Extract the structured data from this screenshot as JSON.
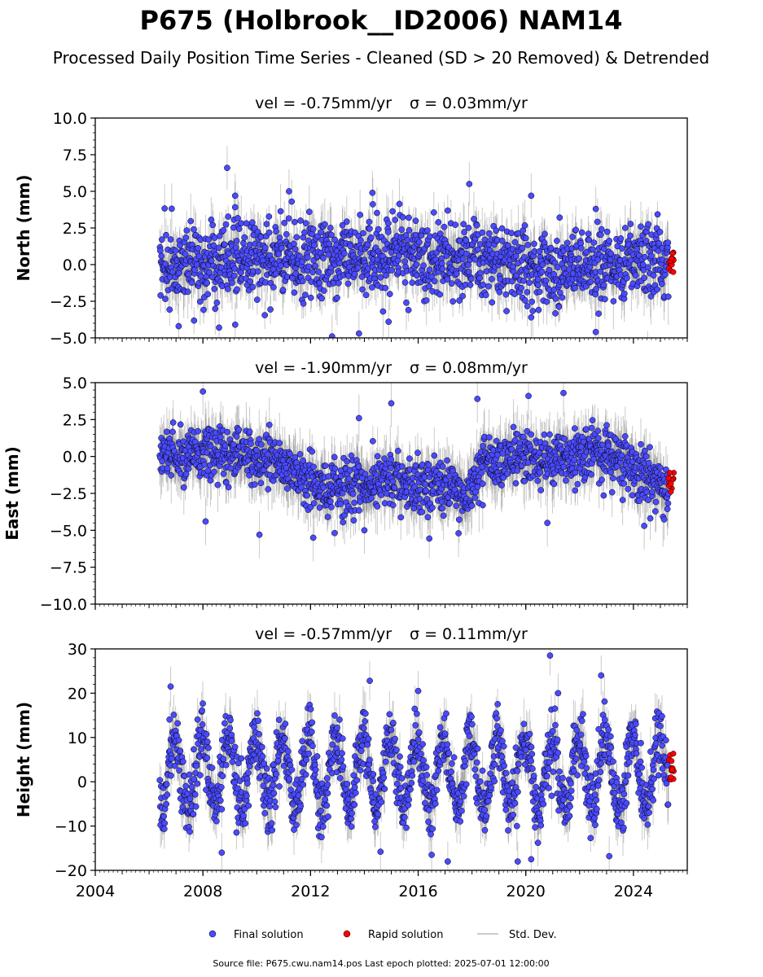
{
  "title": "P675 (Holbrook__ID2006) NAM14",
  "subtitle": "Processed Daily Position Time Series - Cleaned (SD > 20 Removed) & Detrended",
  "legend": {
    "placement": "bottom-center",
    "items": [
      {
        "label": "Final solution",
        "color": "#4a4aff",
        "marker": "circle"
      },
      {
        "label": "Rapid solution",
        "color": "#ff0000",
        "marker": "circle"
      },
      {
        "label": "Std. Dev.",
        "color": "#bbbbbb",
        "marker": "line"
      }
    ]
  },
  "footer": "Source file: P675.cwu.nam14.pos  Last epoch plotted: 2025-07-01 12:00:00",
  "colors": {
    "final": "#4a4aff",
    "rapid": "#ff0000",
    "errorbar": "#666666",
    "edge": "#000000"
  },
  "chart_data": [
    {
      "type": "scatter",
      "panel_title_vel": "vel = -0.75mm/yr",
      "panel_title_sigma": "σ = 0.03mm/yr",
      "ylabel": "North (mm)",
      "xlim": [
        2004,
        2026
      ],
      "ylim": [
        -5,
        10
      ],
      "yticks": [
        -5,
        -2.5,
        0,
        2.5,
        5,
        7.5,
        10
      ],
      "ytick_labels": [
        "−5.0",
        "−2.5",
        "0.0",
        "2.5",
        "5.0",
        "7.5",
        "10.0"
      ],
      "xticks": [
        2004,
        2008,
        2012,
        2016,
        2020,
        2024
      ],
      "xtick_labels": [],
      "grid": false,
      "series": [
        {
          "name": "Final solution",
          "x_range": [
            2006.4,
            2025.3
          ],
          "mean": 0.3,
          "scatter_sd": 1.3,
          "error_sd": 1.5,
          "trend": [
            [
              2006.4,
              0.0
            ],
            [
              2010,
              0.4
            ],
            [
              2015,
              0.5
            ],
            [
              2018,
              0.2
            ],
            [
              2021,
              -0.3
            ],
            [
              2025.3,
              0.4
            ]
          ]
        },
        {
          "name": "Rapid solution",
          "x_range": [
            2025.3,
            2025.5
          ],
          "mean": 0.2,
          "scatter_sd": 0.4
        }
      ],
      "outliers": [
        [
          2008.9,
          6.6
        ],
        [
          2009.2,
          4.7
        ],
        [
          2011.2,
          5.0
        ],
        [
          2011.3,
          4.3
        ],
        [
          2014.3,
          4.9
        ],
        [
          2017.9,
          5.5
        ],
        [
          2020.2,
          4.7
        ],
        [
          2022.6,
          3.8
        ],
        [
          2008.6,
          -4.3
        ],
        [
          2009.2,
          -4.1
        ],
        [
          2013.8,
          -4.7
        ],
        [
          2012.8,
          -4.9
        ],
        [
          2014.9,
          -3.9
        ],
        [
          2022.6,
          -4.6
        ],
        [
          2007.1,
          -4.2
        ],
        [
          2020.2,
          -3.6
        ]
      ]
    },
    {
      "type": "scatter",
      "panel_title_vel": "vel = -1.90mm/yr",
      "panel_title_sigma": "σ = 0.08mm/yr",
      "ylabel": "East (mm)",
      "xlim": [
        2004,
        2026
      ],
      "ylim": [
        -10,
        5
      ],
      "yticks": [
        -10,
        -7.5,
        -5,
        -2.5,
        0,
        2.5,
        5
      ],
      "ytick_labels": [
        "−10.0",
        "−7.5",
        "−5.0",
        "−2.5",
        "0.0",
        "2.5",
        "5.0"
      ],
      "xticks": [
        2004,
        2008,
        2012,
        2016,
        2020,
        2024
      ],
      "xtick_labels": [],
      "grid": false,
      "series": [
        {
          "name": "Final solution",
          "x_range": [
            2006.4,
            2025.3
          ],
          "scatter_sd": 0.9,
          "error_sd": 1.6,
          "trend": [
            [
              2006.4,
              0.3
            ],
            [
              2009,
              0.2
            ],
            [
              2011,
              -0.5
            ],
            [
              2012.5,
              -2.2
            ],
            [
              2015,
              -1.8
            ],
            [
              2017,
              -2.0
            ],
            [
              2017.8,
              -3.0
            ],
            [
              2018.3,
              -0.4
            ],
            [
              2020,
              0.0
            ],
            [
              2021,
              -0.5
            ],
            [
              2022.5,
              0.5
            ],
            [
              2023.5,
              -0.3
            ],
            [
              2025.3,
              -2.3
            ]
          ]
        },
        {
          "name": "Rapid solution",
          "x_range": [
            2025.3,
            2025.5
          ],
          "mean": -1.9,
          "scatter_sd": 0.4
        }
      ],
      "outliers": [
        [
          2008.0,
          4.4
        ],
        [
          2015.0,
          3.6
        ],
        [
          2018.2,
          3.9
        ],
        [
          2021.4,
          4.3
        ],
        [
          2020.1,
          4.1
        ],
        [
          2013.8,
          2.6
        ],
        [
          2008.1,
          -4.4
        ],
        [
          2010.1,
          -5.3
        ],
        [
          2012.1,
          -5.5
        ],
        [
          2014.0,
          -5.0
        ],
        [
          2017.5,
          -5.2
        ],
        [
          2020.8,
          -4.5
        ],
        [
          2024.4,
          -4.7
        ],
        [
          2018.4,
          -3.3
        ]
      ]
    },
    {
      "type": "scatter",
      "panel_title_vel": "vel = -0.57mm/yr",
      "panel_title_sigma": "σ = 0.11mm/yr",
      "ylabel": "Height (mm)",
      "xlim": [
        2004,
        2026
      ],
      "ylim": [
        -20,
        30
      ],
      "yticks": [
        -20,
        -10,
        0,
        10,
        20,
        30
      ],
      "ytick_labels": [
        "−20",
        "−10",
        "0",
        "10",
        "20",
        "30"
      ],
      "xticks": [
        2004,
        2008,
        2012,
        2016,
        2020,
        2024
      ],
      "xtick_labels": [
        "2004",
        "2008",
        "2012",
        "2016",
        "2020",
        "2024"
      ],
      "grid": false,
      "series": [
        {
          "name": "Final solution",
          "x_range": [
            2006.4,
            2025.3
          ],
          "mean": 2.0,
          "scatter_sd": 3.5,
          "error_sd": 4.5,
          "seasonal_amplitude": 8.0,
          "seasonal_peak": 0.95
        },
        {
          "name": "Rapid solution",
          "x_range": [
            2025.3,
            2025.5
          ],
          "mean": 3.0,
          "scatter_sd": 2.0
        }
      ],
      "outliers": [
        [
          2006.8,
          21.5
        ],
        [
          2014.2,
          22.8
        ],
        [
          2016.0,
          20.5
        ],
        [
          2020.9,
          28.5
        ],
        [
          2021.2,
          20.0
        ],
        [
          2022.8,
          24.0
        ],
        [
          2014.6,
          -15.8
        ],
        [
          2016.5,
          -16.5
        ],
        [
          2008.7,
          -16.0
        ],
        [
          2019.7,
          -18.0
        ],
        [
          2017.1,
          -18.0
        ],
        [
          2020.2,
          -17.5
        ],
        [
          2023.1,
          -16.8
        ]
      ]
    }
  ]
}
